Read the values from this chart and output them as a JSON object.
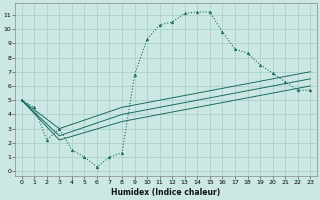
{
  "xlabel": "Humidex (Indice chaleur)",
  "background_color": "#cce8e4",
  "grid_color": "#a8ccc8",
  "line_color": "#1a6b5e",
  "xlim": [
    -0.5,
    23.5
  ],
  "ylim": [
    -0.3,
    11.8
  ],
  "xticks": [
    0,
    1,
    2,
    3,
    4,
    5,
    6,
    7,
    8,
    9,
    10,
    11,
    12,
    13,
    14,
    15,
    16,
    17,
    18,
    19,
    20,
    21,
    22,
    23
  ],
  "yticks": [
    0,
    1,
    2,
    3,
    4,
    5,
    6,
    7,
    8,
    9,
    10,
    11
  ],
  "main_x": [
    0,
    1,
    2,
    3,
    4,
    5,
    6,
    7,
    8,
    9,
    10,
    11,
    12,
    13,
    14,
    15,
    16,
    17,
    18,
    19,
    20,
    21,
    22,
    23
  ],
  "main_y": [
    5.0,
    4.5,
    2.2,
    3.0,
    1.5,
    1.0,
    0.3,
    1.0,
    1.3,
    6.8,
    9.3,
    10.3,
    10.5,
    11.1,
    11.2,
    11.2,
    9.8,
    8.6,
    8.3,
    7.5,
    6.9,
    6.3,
    5.7,
    5.7
  ],
  "line1_x": [
    0,
    3,
    8,
    23
  ],
  "line1_y": [
    5.0,
    3.0,
    4.5,
    7.0
  ],
  "line2_x": [
    0,
    3,
    8,
    23
  ],
  "line2_y": [
    5.0,
    2.5,
    4.0,
    6.5
  ],
  "line3_x": [
    0,
    3,
    8,
    23
  ],
  "line3_y": [
    5.0,
    2.2,
    3.5,
    6.0
  ]
}
